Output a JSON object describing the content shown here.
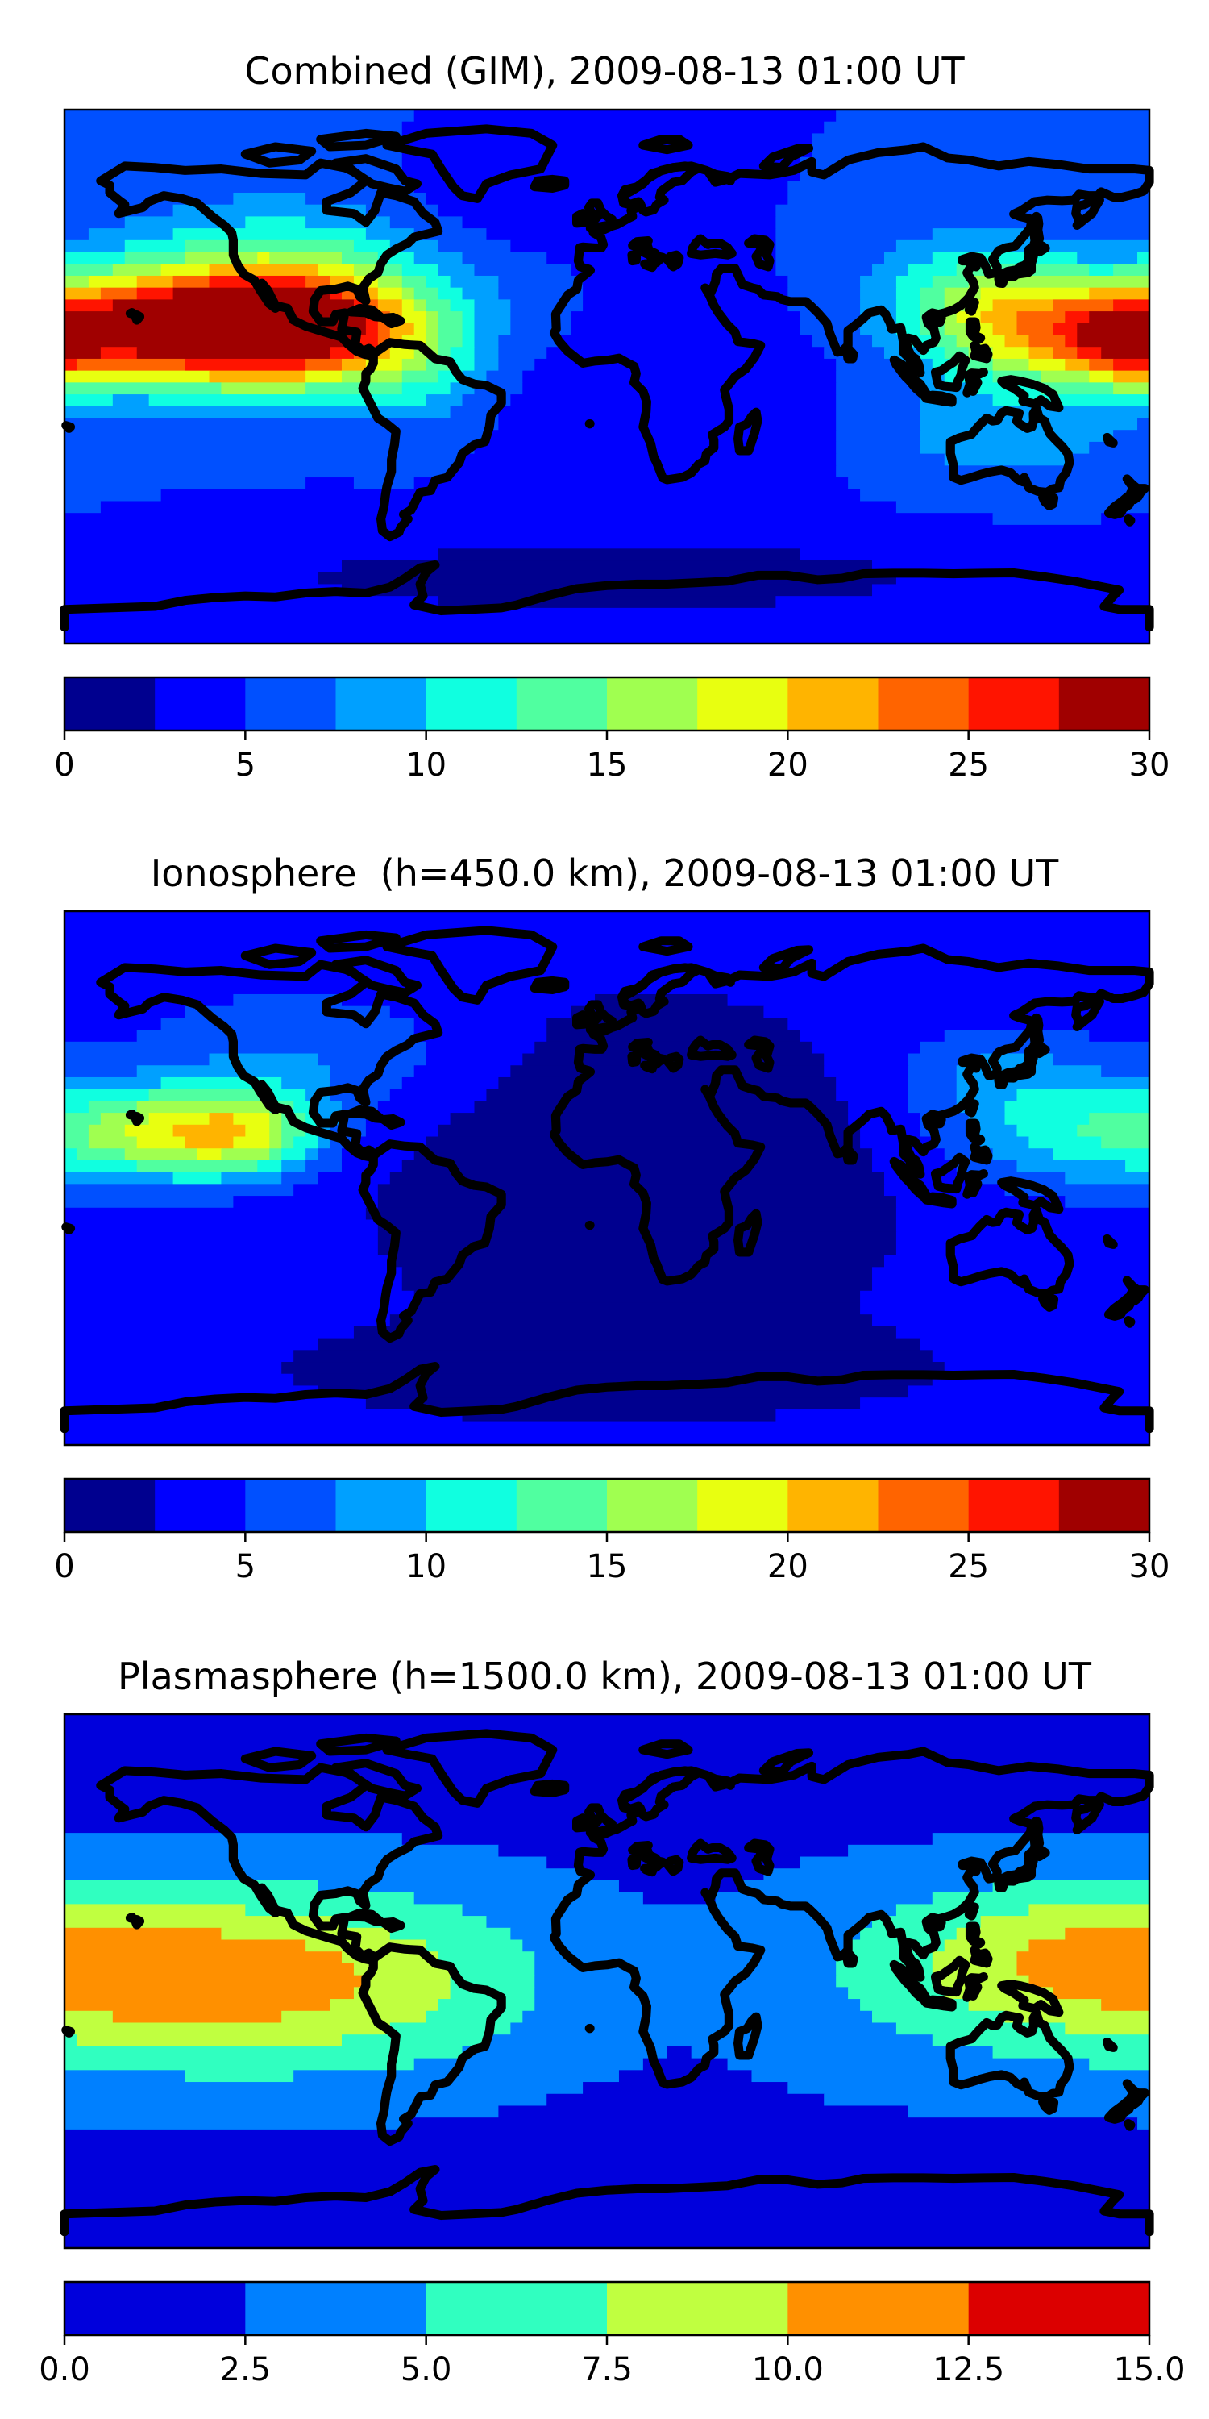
{
  "chart_data": [
    {
      "type": "heatmap",
      "title": "Combined (GIM), 2009-08-13 01:00 UT",
      "levels": [
        0,
        2.5,
        5,
        7.5,
        10,
        12.5,
        15,
        17.5,
        20,
        22.5,
        25,
        27.5,
        30
      ],
      "colors": [
        "#00008f",
        "#0000ff",
        "#0050ff",
        "#00a0ff",
        "#10ffe0",
        "#50ffa0",
        "#a0ff50",
        "#e8ff10",
        "#ffb400",
        "#ff6400",
        "#ff1400",
        "#a00000"
      ],
      "colorbar_ticks": [
        "0",
        "5",
        "10",
        "15",
        "20",
        "25",
        "30"
      ],
      "colorbar_tick_values": [
        0,
        5,
        10,
        15,
        20,
        25,
        30
      ],
      "clim": [
        0,
        30
      ],
      "background_level": 5,
      "features": [
        {
          "lon": -130,
          "lat": 16,
          "value": 26,
          "sx": 42,
          "sy": 13
        },
        {
          "lon": -110,
          "lat": 18,
          "value": 6,
          "sx": 30,
          "sy": 12
        },
        {
          "lon": -95,
          "lat": 10,
          "value": 4,
          "sx": 22,
          "sy": 14
        },
        {
          "lon": -105,
          "lat": 38,
          "value": 7,
          "sx": 40,
          "sy": 16
        },
        {
          "lon": -60,
          "lat": 0,
          "value": 4,
          "sx": 14,
          "sy": 14
        },
        {
          "lon": 150,
          "lat": 15,
          "value": 14,
          "sx": 30,
          "sy": 13
        },
        {
          "lon": 175,
          "lat": 10,
          "value": 8,
          "sx": 12,
          "sy": 10
        },
        {
          "lon": 120,
          "lat": 30,
          "value": 6,
          "sx": 24,
          "sy": 14
        },
        {
          "lon": 130,
          "lat": -20,
          "value": 4,
          "sx": 30,
          "sy": 12
        },
        {
          "lon": 20,
          "lat": -10,
          "value": -2,
          "sx": 40,
          "sy": 24
        },
        {
          "lon": 0,
          "lat": -68,
          "value": -4,
          "sx": 100,
          "sy": 10
        },
        {
          "lon": -40,
          "lat": 55,
          "value": -2,
          "sx": 30,
          "sy": 12
        }
      ]
    },
    {
      "type": "heatmap",
      "title": "Ionosphere  (h=450.0 km), 2009-08-13 01:00 UT",
      "levels": [
        0,
        2.5,
        5,
        7.5,
        10,
        12.5,
        15,
        17.5,
        20,
        22.5,
        25,
        27.5,
        30
      ],
      "colors": [
        "#00008f",
        "#0000ff",
        "#0050ff",
        "#00a0ff",
        "#10ffe0",
        "#50ffa0",
        "#a0ff50",
        "#e8ff10",
        "#ffb400",
        "#ff6400",
        "#ff1400",
        "#a00000"
      ],
      "colorbar_ticks": [
        "0",
        "5",
        "10",
        "15",
        "20",
        "25",
        "30"
      ],
      "colorbar_tick_values": [
        0,
        5,
        10,
        15,
        20,
        25,
        30
      ],
      "clim": [
        0,
        30
      ],
      "background_level": 3.5,
      "features": [
        {
          "lon": -140,
          "lat": 15,
          "value": 14,
          "sx": 25,
          "sy": 11
        },
        {
          "lon": -115,
          "lat": 15,
          "value": 6,
          "sx": 15,
          "sy": 10
        },
        {
          "lon": -100,
          "lat": 40,
          "value": 4,
          "sx": 40,
          "sy": 16
        },
        {
          "lon": 160,
          "lat": 15,
          "value": 8,
          "sx": 30,
          "sy": 13
        },
        {
          "lon": 130,
          "lat": 35,
          "value": 4,
          "sx": 25,
          "sy": 12
        },
        {
          "lon": 10,
          "lat": 0,
          "value": -4,
          "sx": 55,
          "sy": 38
        },
        {
          "lon": 0,
          "lat": -65,
          "value": -3,
          "sx": 70,
          "sy": 10
        }
      ]
    },
    {
      "type": "heatmap",
      "title": "Plasmasphere (h=1500.0 km), 2009-08-13 01:00 UT",
      "levels": [
        0,
        2.5,
        5,
        7.5,
        10,
        12.5,
        15
      ],
      "colors": [
        "#0000dc",
        "#0080ff",
        "#30ffc0",
        "#c0ff40",
        "#ff9000",
        "#dc0000"
      ],
      "colorbar_ticks": [
        "0.0",
        "2.5",
        "5.0",
        "7.5",
        "10.0",
        "12.5",
        "15.0"
      ],
      "colorbar_tick_values": [
        0,
        2.5,
        5,
        7.5,
        10,
        12.5,
        15
      ],
      "clim": [
        0,
        15
      ],
      "background_level": 1.5,
      "features": [
        {
          "lon": 0,
          "lat": 0,
          "value": 3.5,
          "sx": 0,
          "sy": 28
        },
        {
          "lon": -115,
          "lat": 0,
          "value": 6,
          "sx": 55,
          "sy": 20
        },
        {
          "lon": 160,
          "lat": 8,
          "value": 5,
          "sx": 45,
          "sy": 18
        },
        {
          "lon": 20,
          "lat": 0,
          "value": -2.5,
          "sx": 40,
          "sy": 25
        }
      ]
    }
  ]
}
